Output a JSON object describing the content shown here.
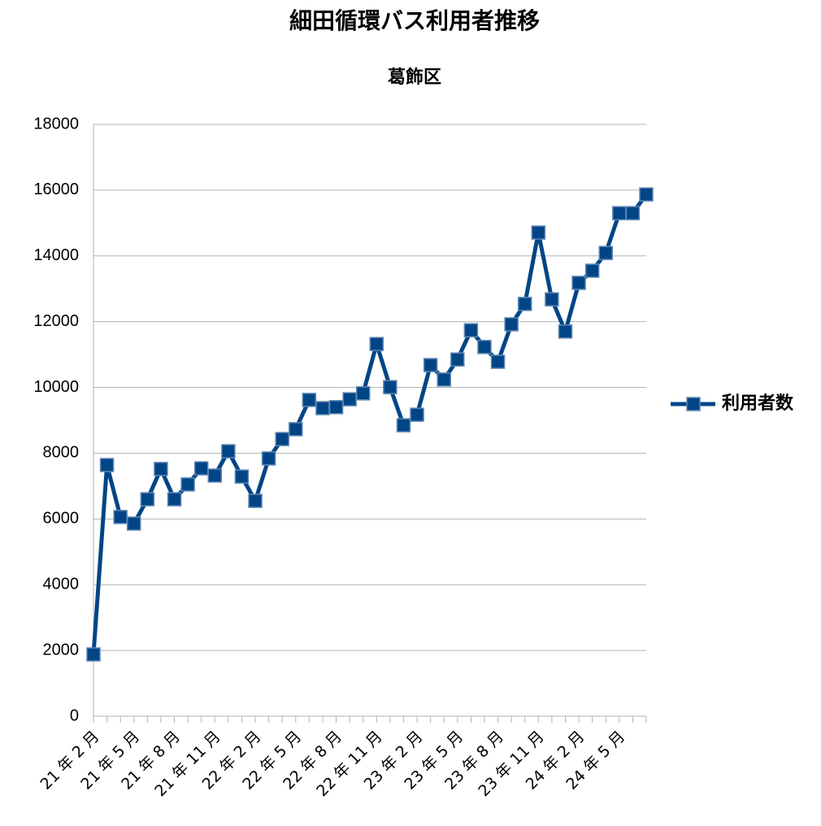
{
  "chart_data": {
    "type": "line",
    "title": "細田循環バス利用者推移",
    "subtitle": "葛飾区",
    "categories": [
      "21 年 2 月",
      null,
      null,
      "21 年 5 月",
      null,
      null,
      "21 年 8 月",
      null,
      null,
      "21 年 11 月",
      null,
      null,
      "22 年 2 月",
      null,
      null,
      "22 年 5 月",
      null,
      null,
      "22 年 8 月",
      null,
      null,
      "22 年 11 月",
      null,
      null,
      "23 年 2 月",
      null,
      null,
      "23 年 5 月",
      null,
      null,
      "23 年 8 月",
      null,
      null,
      "23 年 11 月",
      null,
      null,
      "24 年 2 月",
      null,
      null,
      "24 年 5 月",
      null,
      null
    ],
    "series": [
      {
        "name": "利用者数",
        "color": "#004586",
        "values": [
          1880,
          7640,
          6060,
          5860,
          6600,
          7520,
          6600,
          7050,
          7540,
          7320,
          8060,
          7290,
          6550,
          7840,
          8430,
          8730,
          9620,
          9370,
          9400,
          9640,
          9820,
          11320,
          10010,
          8850,
          9170,
          10680,
          10240,
          10850,
          11740,
          11230,
          10780,
          11920,
          12540,
          14710,
          12680,
          11700,
          13180,
          13550,
          14090,
          15300,
          15300,
          15870
        ]
      }
    ],
    "ylim": [
      0,
      18000
    ],
    "yticks": [
      0,
      2000,
      4000,
      6000,
      8000,
      10000,
      12000,
      14000,
      16000,
      18000
    ],
    "grid": true,
    "legend": "right"
  }
}
